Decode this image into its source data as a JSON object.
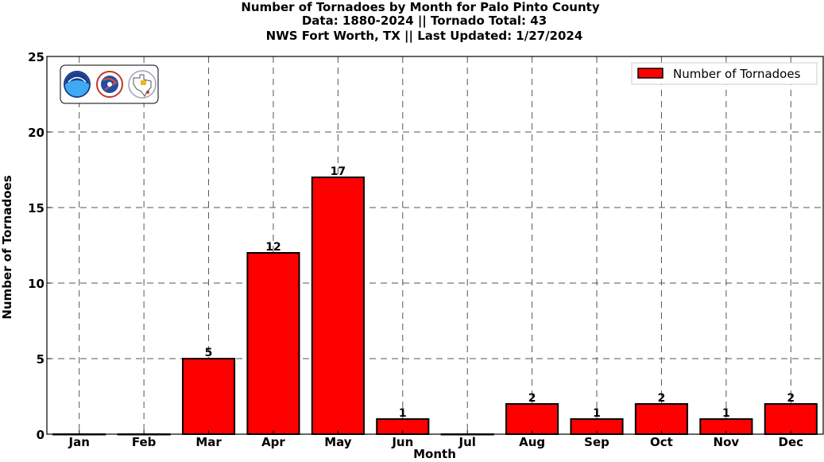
{
  "title_lines": [
    "Number of Tornadoes by Month for Palo Pinto County",
    "Data: 1880-2024 || Tornado Total: 43",
    "NWS Fort Worth, TX || Last Updated: 1/27/2024"
  ],
  "logos": [
    "noaa-logo",
    "national-weather-service-logo",
    "nws-fort-worth-texas-logo"
  ],
  "legend": {
    "label": "Number of Tornadoes",
    "position": "top-right"
  },
  "chart_data": {
    "type": "bar",
    "categories": [
      "Jan",
      "Feb",
      "Mar",
      "Apr",
      "May",
      "Jun",
      "Jul",
      "Aug",
      "Sep",
      "Oct",
      "Nov",
      "Dec"
    ],
    "series": [
      {
        "name": "Number of Tornadoes",
        "values": [
          0,
          0,
          5,
          12,
          17,
          1,
          0,
          2,
          1,
          2,
          1,
          2
        ]
      }
    ],
    "data_labels": [
      "",
      "",
      "5",
      "12",
      "17",
      "1",
      "",
      "2",
      "1",
      "2",
      "1",
      "2"
    ],
    "xlabel": "Month",
    "ylabel": "Number of Tornadoes",
    "ylim": [
      0,
      25
    ],
    "yticks": [
      0,
      5,
      10,
      15,
      20,
      25
    ],
    "grid": true,
    "bar_color": "#ff0000",
    "edge_color": "#000000"
  }
}
